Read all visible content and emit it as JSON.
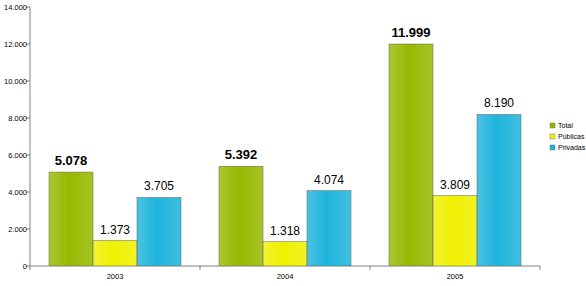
{
  "chart_data": {
    "type": "bar",
    "categories": [
      "2003",
      "2004",
      "2005"
    ],
    "series": [
      {
        "name": "Total",
        "color": "#96b900",
        "values": [
          5078,
          5392,
          11999
        ],
        "value_labels": [
          "5.078",
          "5.392",
          "11.999"
        ]
      },
      {
        "name": "Públicas",
        "color": "#f0f000",
        "values": [
          1373,
          1318,
          3809
        ],
        "value_labels": [
          "1.373",
          "1.318",
          "3.809"
        ]
      },
      {
        "name": "Privadas",
        "color": "#1eb4dc",
        "values": [
          3705,
          4074,
          8190
        ],
        "value_labels": [
          "3.705",
          "4.074",
          "8.190"
        ]
      }
    ],
    "ylim": [
      0,
      14000
    ],
    "yticks": [
      0,
      {
        "value": 2000,
        "label": "2.000"
      },
      {
        "value": 4000,
        "label": "4.000"
      },
      {
        "value": 6000,
        "label": "6.000"
      },
      {
        "value": 8000,
        "label": "8.000"
      },
      {
        "value": 10000,
        "label": "10.000"
      },
      {
        "value": 12000,
        "label": "12.000"
      },
      {
        "value": 14000,
        "label": "14.000"
      }
    ],
    "grid": false,
    "legend": "right",
    "data_labels": true
  }
}
